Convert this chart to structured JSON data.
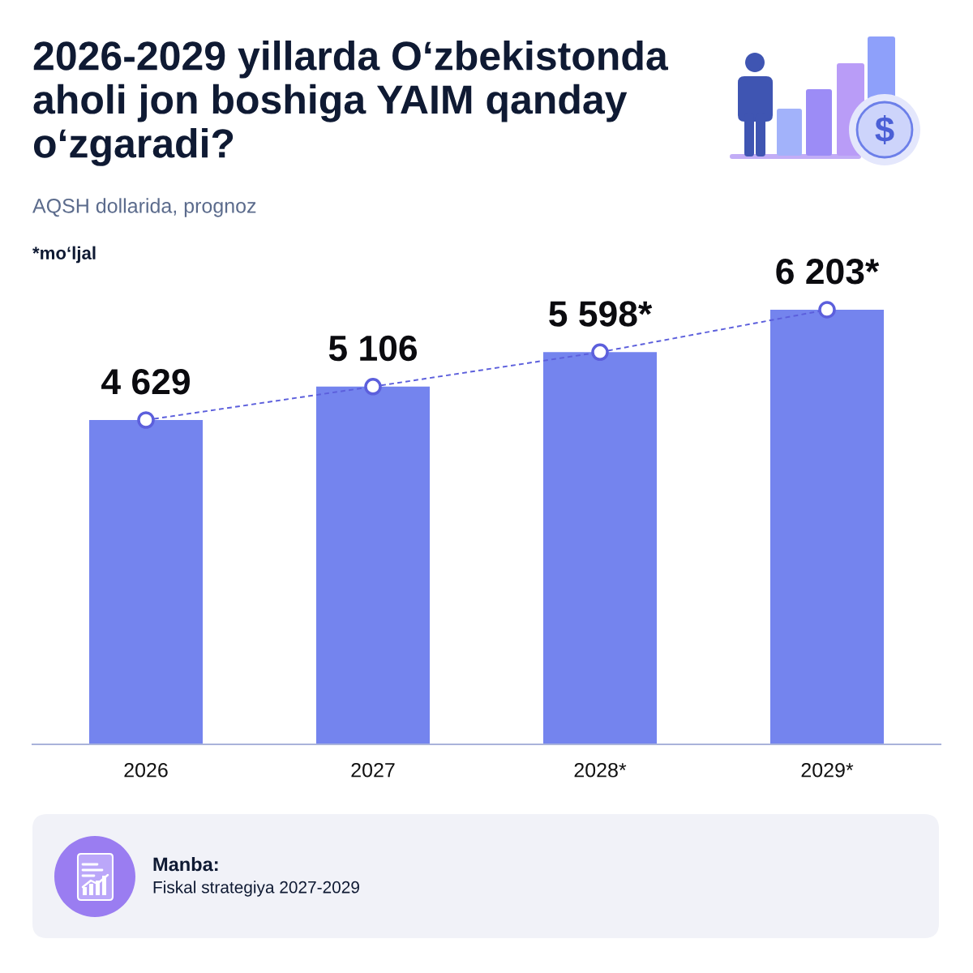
{
  "chart_data": {
    "type": "bar",
    "title": "2026-2029 yillarda O‘zbekistonda aholi jon boshiga YAIM qanday o‘zgaradi?",
    "subtitle": "AQSH dollarida, prognoz",
    "annotations": [
      "*mo‘ljal",
      "Manba:",
      "Fiskal strategiya 2027-2029"
    ],
    "categories": [
      "2026",
      "2027",
      "2028*",
      "2029*"
    ],
    "series": [
      {
        "color": "#7484ee",
        "values": [
          4629,
          5106,
          5598,
          6203
        ],
        "value_labels": [
          "4 629",
          "5 106",
          "5 598*",
          "6 203*"
        ]
      },
      {
        "type": "line",
        "color": "#5c5fdc",
        "values": [
          4629,
          5106,
          5598,
          6203
        ],
        "line_style": "dashed",
        "marker": "circle"
      }
    ]
  }
}
